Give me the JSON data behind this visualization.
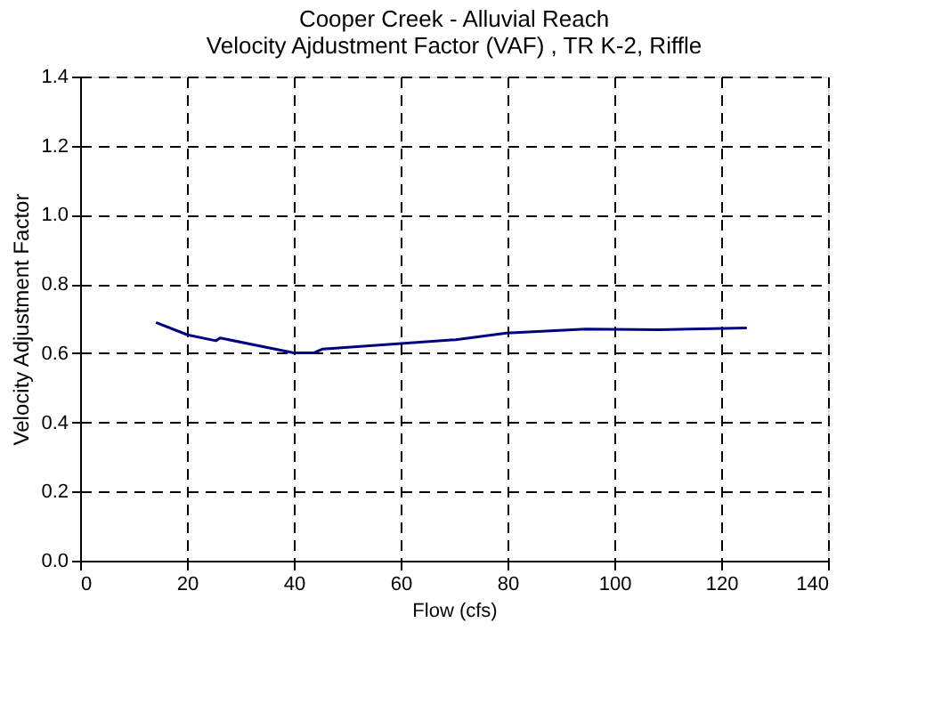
{
  "chart_data": {
    "type": "line",
    "title": [
      "Cooper Creek - Alluvial Reach",
      "Velocity Ajdustment Factor (VAF) , TR K-2, Riffle"
    ],
    "xlabel": "Flow (cfs)",
    "ylabel": "Velocity Adjustment Factor",
    "x": [
      14.2,
      20.1,
      25.4,
      26.2,
      40.0,
      43.8,
      45.4,
      70.3,
      79.8,
      94.6,
      108.4,
      124.8
    ],
    "series": [
      {
        "color": "#000080",
        "values": [
          0.689,
          0.653,
          0.636,
          0.644,
          0.601,
          0.601,
          0.612,
          0.639,
          0.658,
          0.67,
          0.668,
          0.673
        ]
      }
    ],
    "xlim": [
      0,
      140
    ],
    "xticks": [
      0,
      20,
      40,
      60,
      80,
      100,
      120,
      140
    ],
    "ylim": [
      0,
      1.4
    ],
    "yticks": [
      {
        "value": 0,
        "label": "0.0"
      },
      {
        "value": 0.2,
        "label": "0.2"
      },
      {
        "value": 0.4,
        "label": "0.4"
      },
      {
        "value": 0.6,
        "label": "0.6"
      },
      {
        "value": 0.8,
        "label": "0.8"
      },
      {
        "value": 1.0,
        "label": "1.0"
      },
      {
        "value": 1.2,
        "label": "1.2"
      },
      {
        "value": 1.4,
        "label": "1.4"
      }
    ],
    "grid": true,
    "legend": false,
    "marker": "none",
    "line_style": "solid"
  }
}
